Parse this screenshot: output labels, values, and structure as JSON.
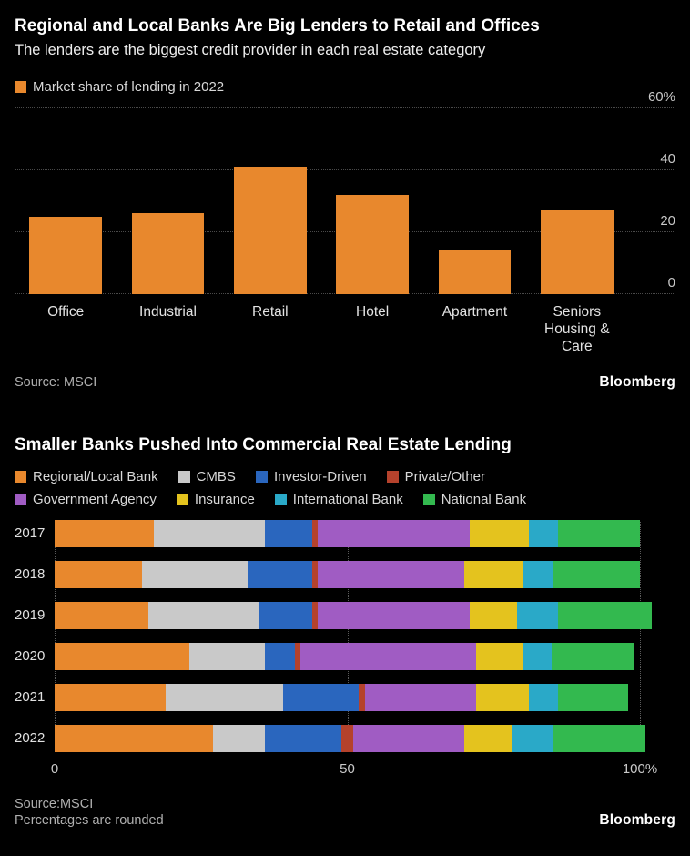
{
  "chart_data": [
    {
      "type": "bar",
      "title": "Regional and Local Banks Are Big Lenders to Retail and Offices",
      "subtitle": "The lenders are the biggest credit provider in each real estate category",
      "legend": [
        "Market share of lending in 2022"
      ],
      "legend_position": "top-left",
      "bar_color": "#E8882D",
      "categories": [
        "Office",
        "Industrial",
        "Retail",
        "Hotel",
        "Apartment",
        "Seniors Housing & Care"
      ],
      "values": [
        25,
        26,
        41,
        32,
        14,
        27
      ],
      "ylim": [
        0,
        60
      ],
      "yticks": [
        0,
        20,
        40,
        60
      ],
      "ytick_labels": [
        "0",
        "20",
        "40",
        "60%"
      ],
      "grid": "horizontal-dotted",
      "source": "Source: MSCI",
      "brand": "Bloomberg"
    },
    {
      "type": "bar",
      "orientation": "horizontal-stacked",
      "title": "Smaller Banks Pushed Into Commercial Real Estate Lending",
      "legend_position": "top-left",
      "categories": [
        "2017",
        "2018",
        "2019",
        "2020",
        "2021",
        "2022"
      ],
      "series": [
        {
          "name": "Regional/Local Bank",
          "color": "#E8882D",
          "values": [
            17,
            15,
            16,
            23,
            19,
            27
          ]
        },
        {
          "name": "CMBS",
          "color": "#C9C9C9",
          "values": [
            19,
            18,
            19,
            13,
            20,
            9
          ]
        },
        {
          "name": "Investor-Driven",
          "color": "#2A66BE",
          "values": [
            8,
            11,
            9,
            5,
            13,
            13
          ]
        },
        {
          "name": "Private/Other",
          "color": "#B5422C",
          "values": [
            1,
            1,
            1,
            1,
            1,
            2
          ]
        },
        {
          "name": "Government Agency",
          "color": "#A05CC3",
          "values": [
            26,
            25,
            26,
            30,
            19,
            19
          ]
        },
        {
          "name": "Insurance",
          "color": "#E4C31E",
          "values": [
            10,
            10,
            8,
            8,
            9,
            8
          ]
        },
        {
          "name": "International Bank",
          "color": "#2AA9C8",
          "values": [
            5,
            5,
            7,
            5,
            5,
            7
          ]
        },
        {
          "name": "National Bank",
          "color": "#33B94F",
          "values": [
            14,
            15,
            16,
            14,
            12,
            16
          ]
        }
      ],
      "units": "percent",
      "xlim": [
        0,
        100
      ],
      "xticks": [
        0,
        50,
        100
      ],
      "xtick_labels": [
        "0",
        "50",
        "100%"
      ],
      "grid": "vertical-dotted",
      "source": "Source:MSCI",
      "note": "Percentages are rounded",
      "brand": "Bloomberg"
    }
  ]
}
